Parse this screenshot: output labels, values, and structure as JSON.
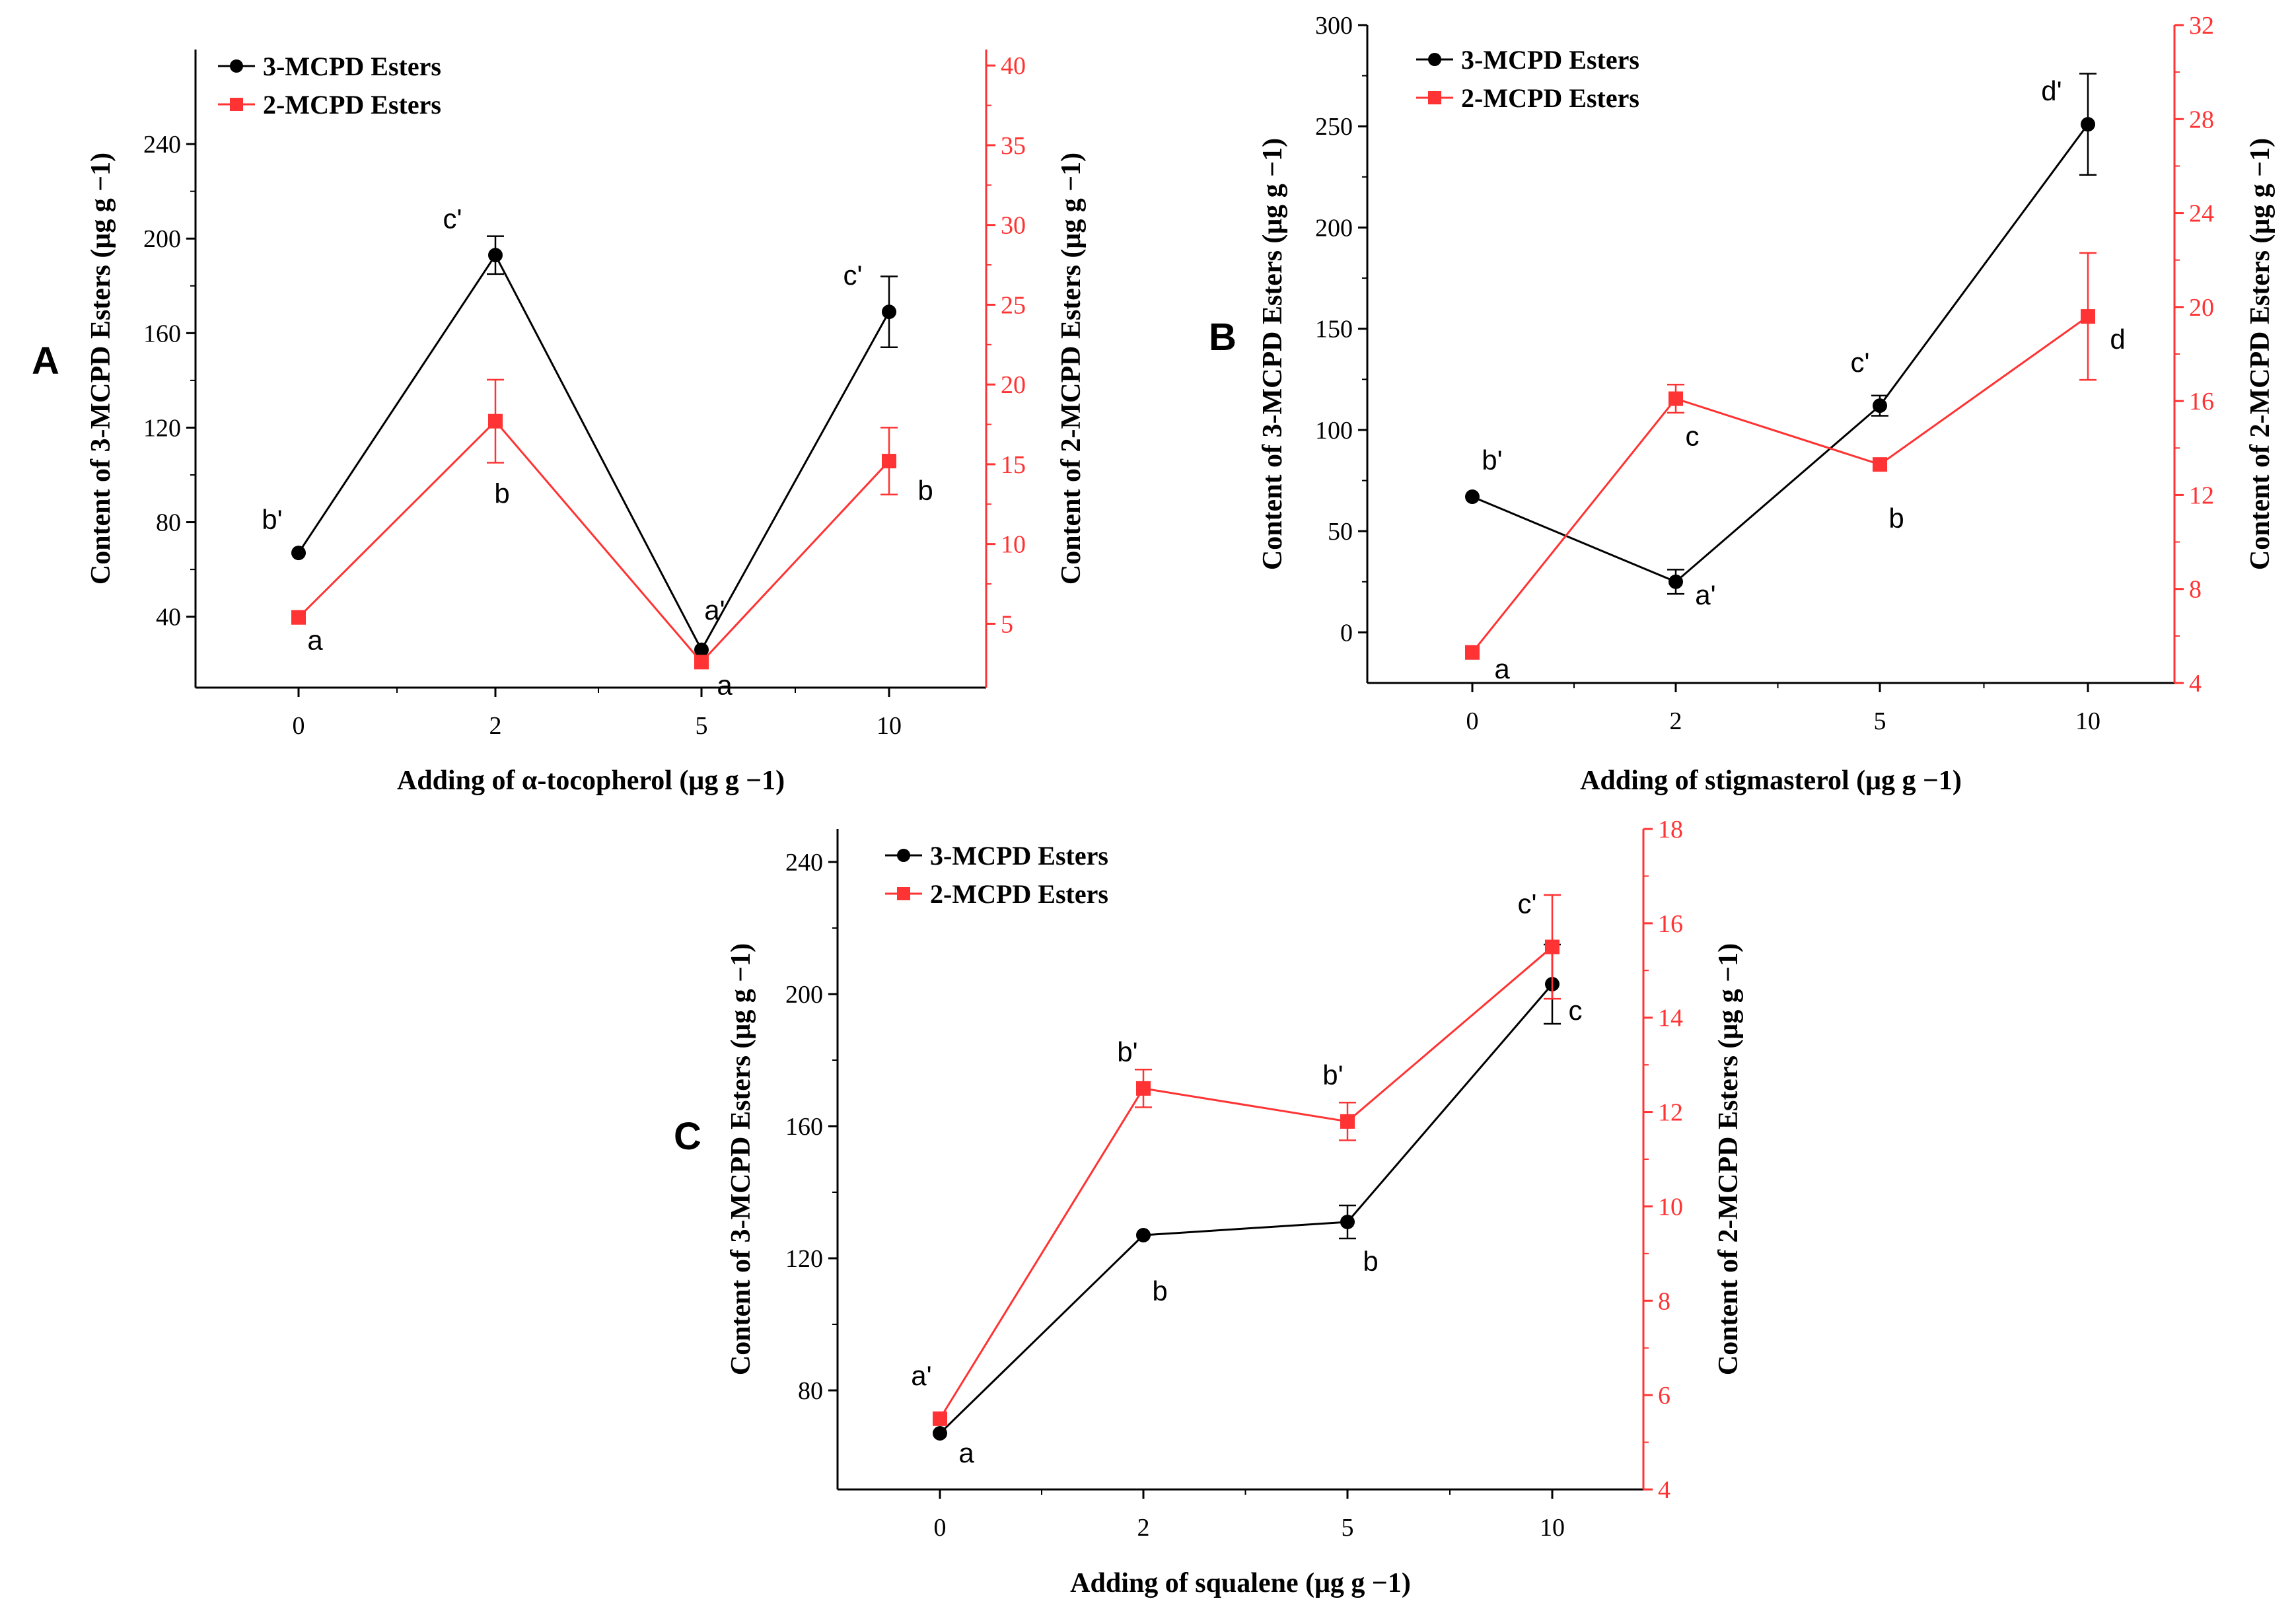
{
  "colors": {
    "series1": "#000000",
    "series2": "#ff3333",
    "axis_left": "#000000",
    "axis_right": "#ff3333"
  },
  "chart_data": [
    {
      "type": "line",
      "panel": "A",
      "xlabel": "Adding of α-tocopherol (μg g −1)",
      "ylabel": "Content of 3-MCPD Esters (μg g −1)",
      "y2label": "Content of 2-MCPD Esters (μg g −1)",
      "categories": [
        "0",
        "2",
        "5",
        "10"
      ],
      "ylim": [
        10,
        280
      ],
      "yticks": [
        40,
        80,
        120,
        160,
        200,
        240
      ],
      "y2lim": [
        1,
        41
      ],
      "y2ticks": [
        5,
        10,
        15,
        20,
        25,
        30,
        35,
        40
      ],
      "series": [
        {
          "name": "3-MCPD Esters",
          "axis": "left",
          "values": [
            67,
            193,
            26,
            169
          ],
          "errors": [
            0,
            8,
            0,
            15
          ],
          "labels": [
            "b'",
            "c'",
            "a'",
            "c'"
          ]
        },
        {
          "name": "2-MCPD Esters",
          "axis": "right",
          "values": [
            5.4,
            17.7,
            2.6,
            15.2
          ],
          "errors": [
            0,
            2.6,
            0,
            2.1
          ],
          "labels": [
            "a",
            "b",
            "a",
            "b"
          ]
        }
      ]
    },
    {
      "type": "line",
      "panel": "B",
      "xlabel": "Adding of stigmasterol (μg g −1)",
      "ylabel": "Content of 3-MCPD Esters (μg g −1)",
      "y2label": "Content of 2-MCPD Esters (μg g −1)",
      "categories": [
        "0",
        "2",
        "5",
        "10"
      ],
      "ylim": [
        -25,
        300
      ],
      "yticks": [
        0,
        50,
        100,
        150,
        200,
        250,
        300
      ],
      "y2lim": [
        4,
        32
      ],
      "y2ticks": [
        4,
        8,
        12,
        16,
        20,
        24,
        28,
        32
      ],
      "series": [
        {
          "name": "3-MCPD Esters",
          "axis": "left",
          "values": [
            67,
            25,
            112,
            251
          ],
          "errors": [
            0,
            6,
            5,
            25
          ],
          "labels": [
            "b'",
            "a'",
            "c'",
            "d'"
          ]
        },
        {
          "name": "2-MCPD Esters",
          "axis": "right",
          "values": [
            5.3,
            16.1,
            13.3,
            19.6
          ],
          "errors": [
            0,
            0.6,
            0,
            2.7
          ],
          "labels": [
            "a",
            "c",
            "b",
            "d"
          ]
        }
      ]
    },
    {
      "type": "line",
      "panel": "C",
      "xlabel": "Adding of squalene (μg g −1)",
      "ylabel": "Content of 3-MCPD Esters (μg g −1)",
      "y2label": "Content of 2-MCPD Esters (μg g −1)",
      "categories": [
        "0",
        "2",
        "5",
        "10"
      ],
      "ylim": [
        50,
        250
      ],
      "yticks": [
        80,
        120,
        160,
        200,
        240
      ],
      "y2lim": [
        4,
        18
      ],
      "y2ticks": [
        4,
        6,
        8,
        10,
        12,
        14,
        16,
        18
      ],
      "series": [
        {
          "name": "3-MCPD Esters",
          "axis": "left",
          "values": [
            67,
            127,
            131,
            203
          ],
          "errors": [
            0,
            0,
            5,
            12
          ],
          "labels": [
            "a",
            "b",
            "b",
            "c"
          ]
        },
        {
          "name": "2-MCPD Esters",
          "axis": "right",
          "values": [
            5.5,
            12.5,
            11.8,
            15.5
          ],
          "errors": [
            0,
            0.4,
            0.4,
            1.1
          ],
          "labels": [
            "a'",
            "b'",
            "b'",
            "c'"
          ]
        }
      ]
    }
  ]
}
